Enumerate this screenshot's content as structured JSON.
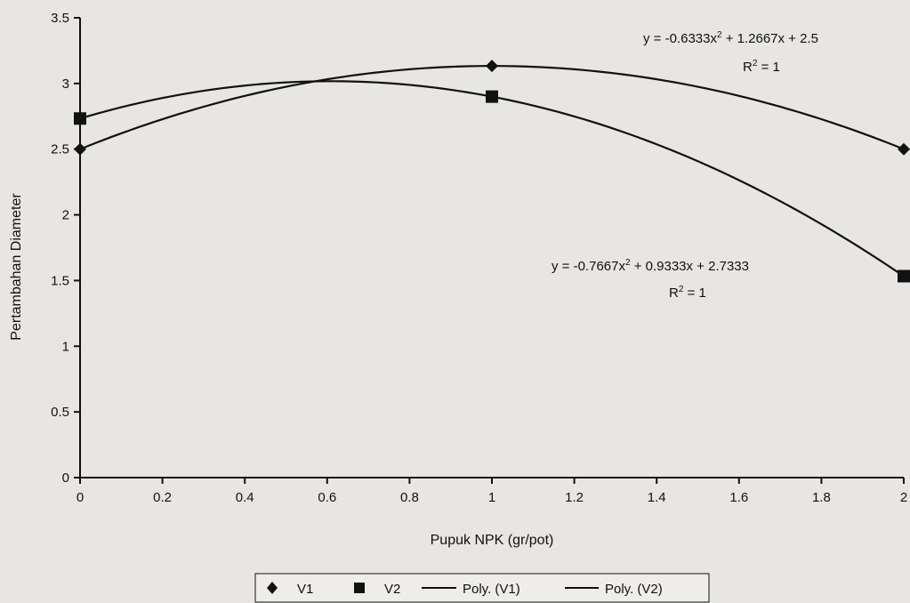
{
  "chart_data": {
    "type": "scatter",
    "title": "",
    "xlabel": "Pupuk NPK (gr/pot)",
    "ylabel": "Pertambahan Diameter",
    "xlim": [
      0,
      2
    ],
    "ylim": [
      0,
      3.5
    ],
    "x_ticks": [
      "0",
      "0.2",
      "0.4",
      "0.6",
      "0.8",
      "1",
      "1.2",
      "1.4",
      "1.6",
      "1.8",
      "2"
    ],
    "y_ticks": [
      "0",
      "0.5",
      "1",
      "1.5",
      "2",
      "2.5",
      "3",
      "3.5"
    ],
    "grid": false,
    "legend_position": "bottom",
    "series": [
      {
        "name": "V1",
        "marker": "diamond",
        "x": [
          0,
          1,
          2
        ],
        "y": [
          2.5,
          3.1333,
          2.5
        ]
      },
      {
        "name": "V2",
        "marker": "square",
        "x": [
          0,
          1,
          2
        ],
        "y": [
          2.7333,
          2.9,
          1.5333
        ]
      }
    ],
    "trendlines": [
      {
        "name": "Poly. (V1)",
        "of": "V1",
        "coefficients": [
          -0.6333,
          1.2667,
          2.5
        ]
      },
      {
        "name": "Poly. (V2)",
        "of": "V2",
        "coefficients": [
          -0.7667,
          0.9333,
          2.7333
        ]
      }
    ],
    "annotations": [
      {
        "series": "V1",
        "equation_prefix": "y = -0.6333x",
        "equation_suffix": " + 1.2667x + 2.5",
        "exponent": "2",
        "r2_prefix": "R",
        "r2_suffix": " = 1"
      },
      {
        "series": "V2",
        "equation_prefix": "y = -0.7667x",
        "equation_suffix": " + 0.9333x + 2.7333",
        "exponent": "2",
        "r2_prefix": "R",
        "r2_suffix": " = 1"
      }
    ],
    "colors": {
      "line": "#111111",
      "marker": "#111111",
      "background": "#e8e6e2"
    }
  }
}
